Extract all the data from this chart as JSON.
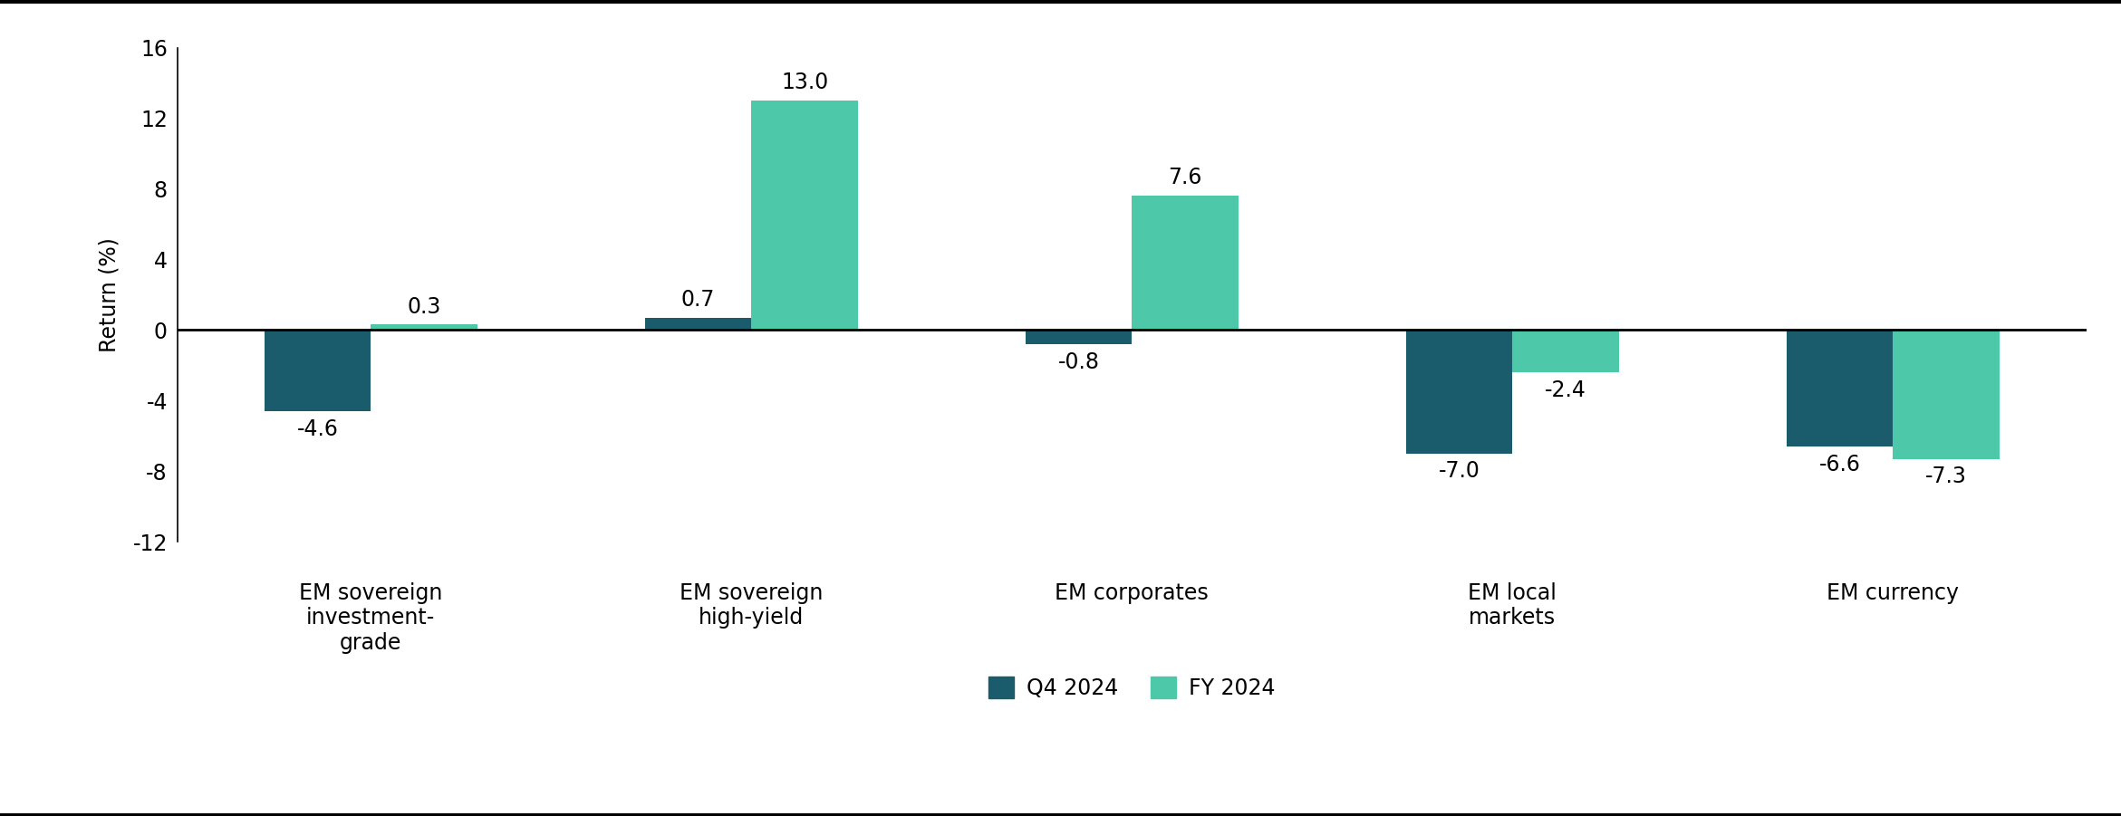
{
  "categories": [
    "EM sovereign\ninvestment-\ngrade",
    "EM sovereign\nhigh-yield",
    "EM corporates",
    "EM local\nmarkets",
    "EM currency"
  ],
  "q4_2024": [
    -4.6,
    0.7,
    -0.8,
    -7.0,
    -6.6
  ],
  "fy_2024": [
    0.3,
    13.0,
    7.6,
    -2.4,
    -7.3
  ],
  "q4_color": "#1a5c6b",
  "fy_color": "#4dc8a8",
  "ylim": [
    -13,
    17
  ],
  "yticks": [
    -12,
    -8,
    -4,
    0,
    4,
    8,
    12,
    16
  ],
  "ylabel": "Return (%)",
  "legend_q4": "Q4 2024",
  "legend_fy": "FY 2024",
  "bar_width": 0.28,
  "background_color": "#ffffff",
  "label_fontsize": 17,
  "tick_fontsize": 17,
  "ylabel_fontsize": 17,
  "legend_fontsize": 17,
  "value_fontsize": 17
}
